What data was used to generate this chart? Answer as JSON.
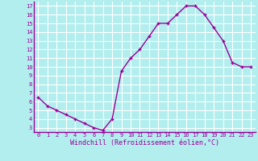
{
  "x": [
    0,
    1,
    2,
    3,
    4,
    5,
    6,
    7,
    8,
    9,
    10,
    11,
    12,
    13,
    14,
    15,
    16,
    17,
    18,
    19,
    20,
    21,
    22,
    23
  ],
  "y": [
    6.5,
    5.5,
    5.0,
    4.5,
    4.0,
    3.5,
    3.0,
    2.7,
    4.0,
    9.5,
    11.0,
    12.0,
    13.5,
    15.0,
    15.0,
    16.0,
    17.0,
    17.0,
    16.0,
    14.5,
    13.0,
    10.5,
    10.0,
    10.0
  ],
  "line_color": "#990099",
  "marker": "+",
  "marker_size": 3,
  "bg_color": "#b2eeee",
  "grid_color": "#ffffff",
  "xlabel": "Windchill (Refroidissement éolien,°C)",
  "xlabel_color": "#990099",
  "yticks": [
    3,
    4,
    5,
    6,
    7,
    8,
    9,
    10,
    11,
    12,
    13,
    14,
    15,
    16,
    17
  ],
  "xticks": [
    0,
    1,
    2,
    3,
    4,
    5,
    6,
    7,
    8,
    9,
    10,
    11,
    12,
    13,
    14,
    15,
    16,
    17,
    18,
    19,
    20,
    21,
    22,
    23
  ],
  "ylim": [
    2.5,
    17.5
  ],
  "xlim": [
    -0.5,
    23.5
  ],
  "tick_label_color": "#990099",
  "tick_label_size": 5,
  "xlabel_size": 6,
  "linewidth": 1.0,
  "markeredgewidth": 1.0,
  "spine_color": "#990099"
}
